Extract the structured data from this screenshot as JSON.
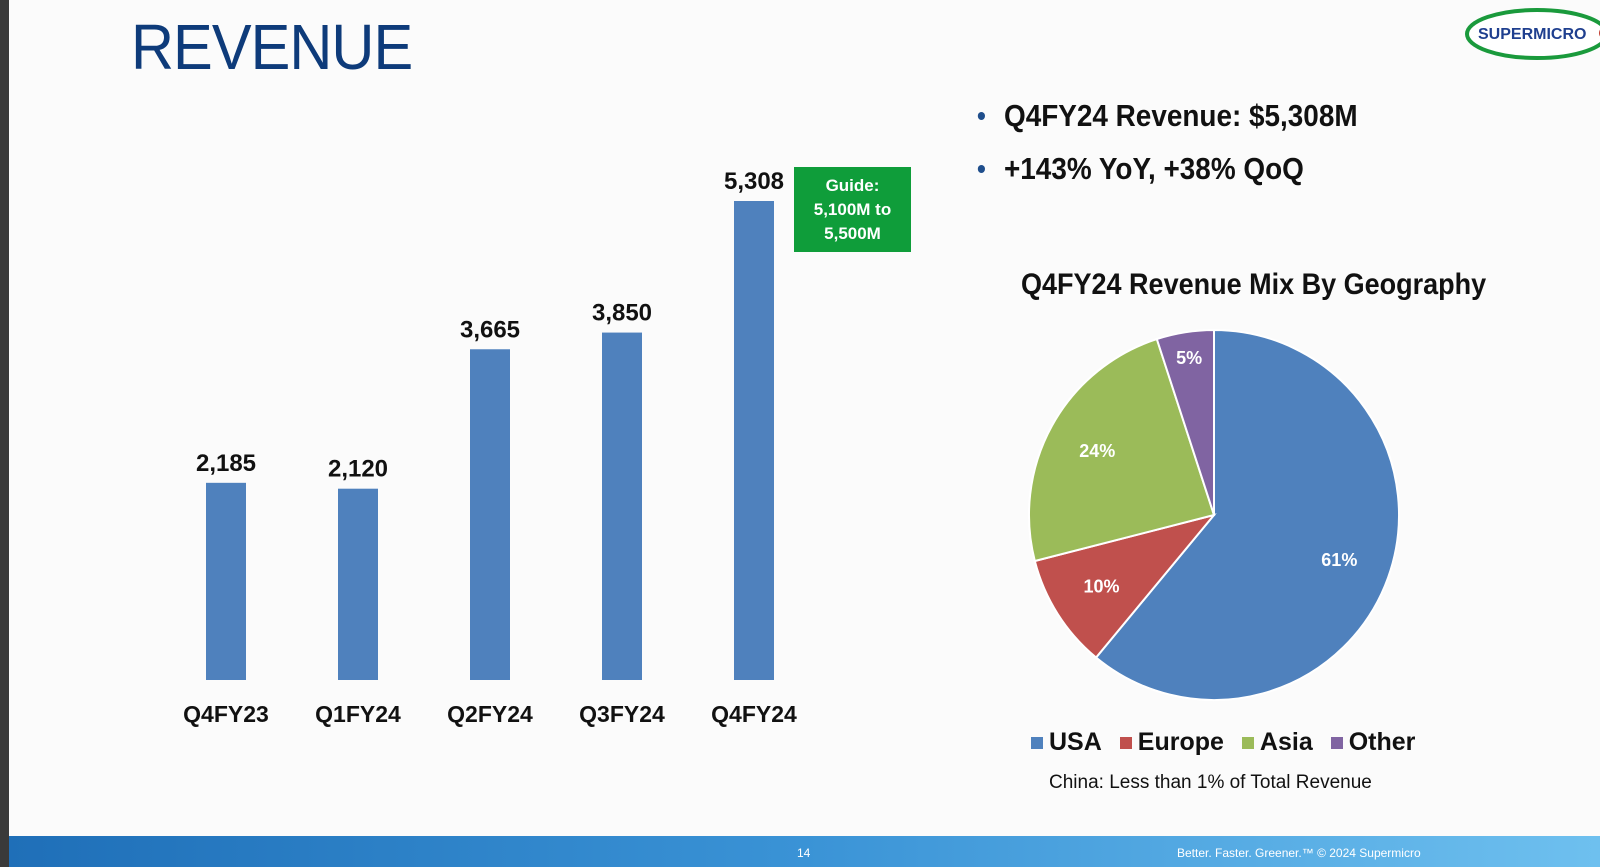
{
  "slide": {
    "title": "REVENUE",
    "logo_text": "SUPERMICRO"
  },
  "bullets": [
    "Q4FY24 Revenue: $5,308M",
    "+143% YoY, +38% QoQ"
  ],
  "guide": {
    "line1": "Guide:",
    "line2": "5,100M to",
    "line3": "5,500M"
  },
  "colors": {
    "bar": "#4f81bd",
    "usa": "#4f81bd",
    "europe": "#c0504d",
    "asia": "#9bbb59",
    "other": "#8064a2",
    "guide_box": "#0f9d3a",
    "title": "#0e3b7a"
  },
  "chart_data": [
    {
      "type": "bar",
      "title": "",
      "categories": [
        "Q4FY23",
        "Q1FY24",
        "Q2FY24",
        "Q3FY24",
        "Q4FY24"
      ],
      "values": [
        2185,
        2120,
        3665,
        3850,
        5308
      ],
      "value_labels": [
        "2,185",
        "2,120",
        "3,665",
        "3,850",
        "5,308"
      ],
      "xlabel": "",
      "ylabel": "",
      "ylim": [
        0,
        5308
      ],
      "grid": false
    },
    {
      "type": "pie",
      "title": "Q4FY24 Revenue Mix By Geography",
      "slices": [
        {
          "name": "USA",
          "value": 61,
          "label": "61%"
        },
        {
          "name": "Europe",
          "value": 10,
          "label": "10%"
        },
        {
          "name": "Asia",
          "value": 24,
          "label": "24%"
        },
        {
          "name": "Other",
          "value": 5,
          "label": "5%"
        }
      ],
      "legend": [
        "USA",
        "Europe",
        "Asia",
        "Other"
      ],
      "legend_position": "bottom",
      "note": "China: Less than 1% of Total Revenue"
    }
  ],
  "footer": {
    "page": "14",
    "text": "Better. Faster. Greener.™ © 2024 Supermicro"
  }
}
